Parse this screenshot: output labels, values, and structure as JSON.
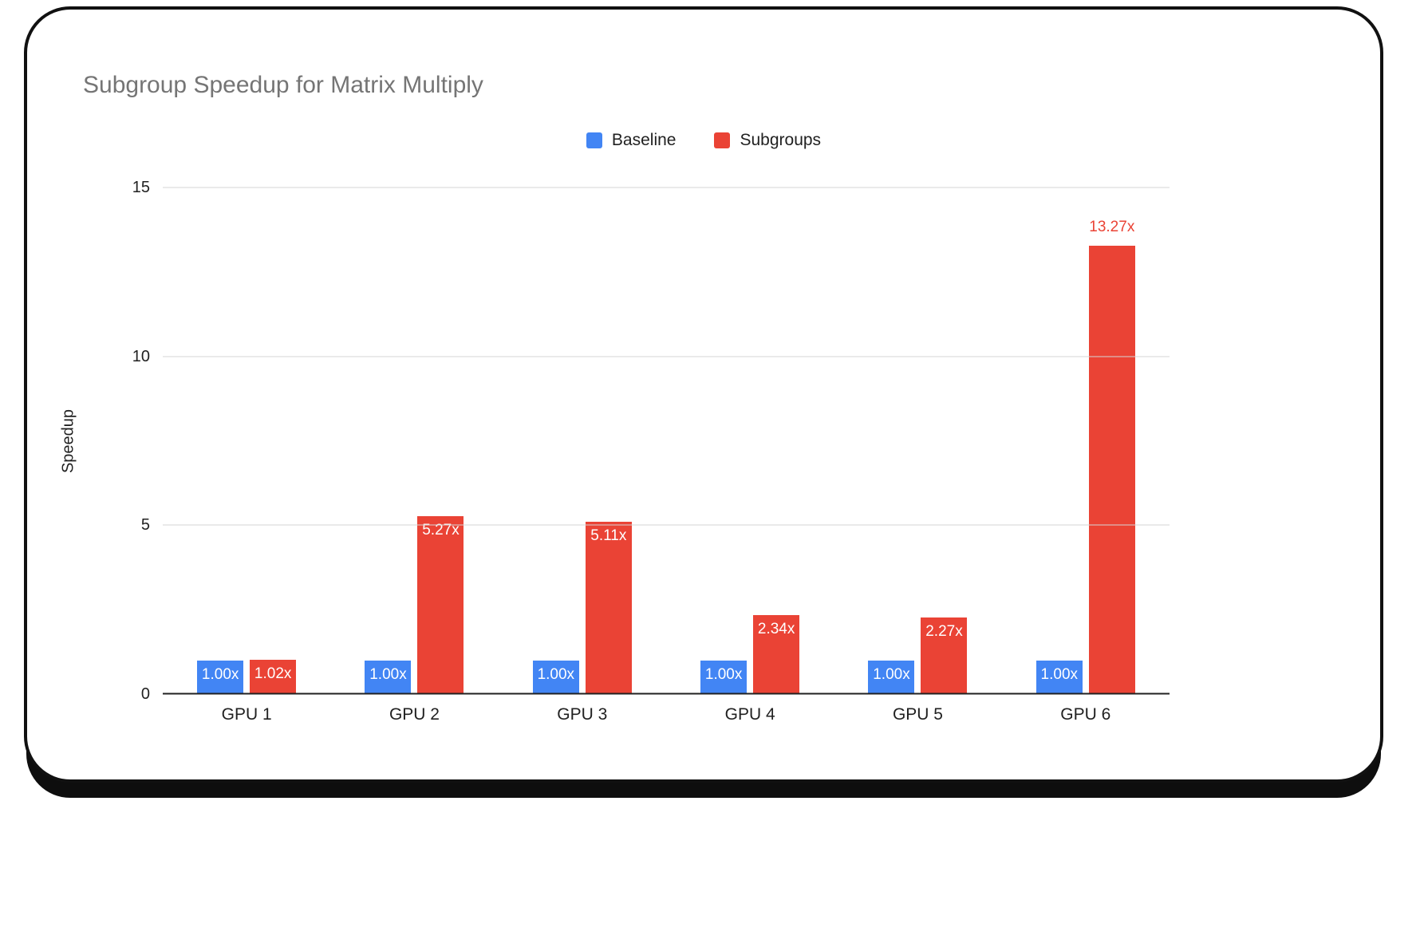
{
  "chart_data": {
    "type": "bar",
    "title": "Subgroup Speedup for Matrix Multiply",
    "categories": [
      "GPU 1",
      "GPU 2",
      "GPU 3",
      "GPU 4",
      "GPU 5",
      "GPU 6"
    ],
    "series": [
      {
        "name": "Baseline",
        "color": "#4285F4",
        "values": [
          1.0,
          1.0,
          1.0,
          1.0,
          1.0,
          1.0
        ],
        "labels": [
          "1.00x",
          "1.00x",
          "1.00x",
          "1.00x",
          "1.00x",
          "1.00x"
        ],
        "label_outside": [
          false,
          false,
          false,
          false,
          false,
          false
        ]
      },
      {
        "name": "Subgroups",
        "color": "#EA4335",
        "values": [
          1.02,
          5.27,
          5.11,
          2.34,
          2.27,
          13.27
        ],
        "labels": [
          "1.02x",
          "5.27x",
          "5.11x",
          "2.34x",
          "2.27x",
          "13.27x"
        ],
        "label_outside": [
          false,
          false,
          false,
          false,
          false,
          true
        ]
      }
    ],
    "xlabel": "",
    "ylabel": "Speedup",
    "yticks": [
      0,
      5,
      10,
      15
    ],
    "ylim": [
      0,
      15
    ],
    "legend_position": "top",
    "grid": true,
    "title_color": "#757575",
    "axis_text_color": "#212121",
    "gridline_color": "#d6d6d6"
  }
}
